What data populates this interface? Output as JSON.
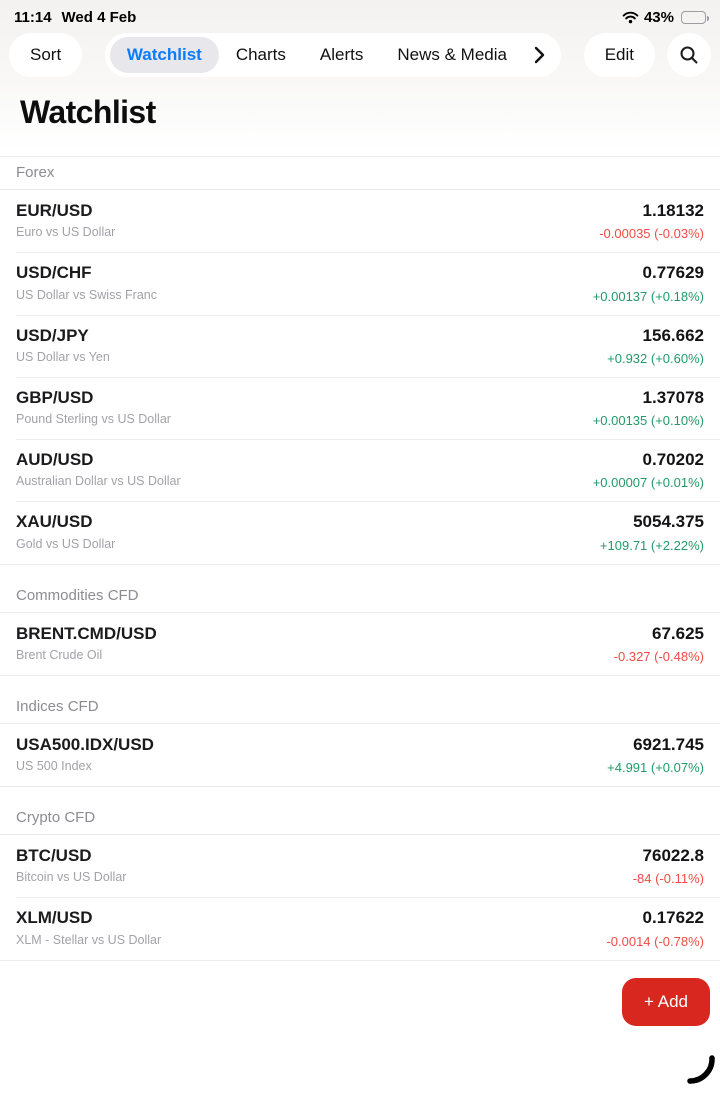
{
  "status_bar": {
    "time": "11:14",
    "date": "Wed 4 Feb",
    "battery_percent": "43%",
    "battery_level": 43
  },
  "nav": {
    "sort_label": "Sort",
    "tabs": [
      {
        "label": "Watchlist",
        "active": true
      },
      {
        "label": "Charts",
        "active": false
      },
      {
        "label": "Alerts",
        "active": false
      },
      {
        "label": "News & Media",
        "active": false
      }
    ],
    "more_icon": "chevron-right-icon",
    "edit_label": "Edit",
    "search_icon": "search-icon"
  },
  "title": "Watchlist",
  "sections": [
    {
      "name": "Forex",
      "rows": [
        {
          "symbol": "EUR/USD",
          "description": "Euro vs US Dollar",
          "price": "1.18132",
          "change": "-0.00035 (-0.03%)",
          "direction": "down"
        },
        {
          "symbol": "USD/CHF",
          "description": "US Dollar vs Swiss Franc",
          "price": "0.77629",
          "change": "+0.00137 (+0.18%)",
          "direction": "up"
        },
        {
          "symbol": "USD/JPY",
          "description": "US Dollar vs Yen",
          "price": "156.662",
          "change": "+0.932 (+0.60%)",
          "direction": "up"
        },
        {
          "symbol": "GBP/USD",
          "description": "Pound Sterling vs US Dollar",
          "price": "1.37078",
          "change": "+0.00135 (+0.10%)",
          "direction": "up"
        },
        {
          "symbol": "AUD/USD",
          "description": "Australian Dollar vs US Dollar",
          "price": "0.70202",
          "change": "+0.00007 (+0.01%)",
          "direction": "up"
        },
        {
          "symbol": "XAU/USD",
          "description": "Gold vs US Dollar",
          "price": "5054.375",
          "change": "+109.71 (+2.22%)",
          "direction": "up"
        }
      ]
    },
    {
      "name": "Commodities CFD",
      "rows": [
        {
          "symbol": "BRENT.CMD/USD",
          "description": "Brent Crude Oil",
          "price": "67.625",
          "change": "-0.327 (-0.48%)",
          "direction": "down"
        }
      ]
    },
    {
      "name": "Indices CFD",
      "rows": [
        {
          "symbol": "USA500.IDX/USD",
          "description": "US 500 Index",
          "price": "6921.745",
          "change": "+4.991 (+0.07%)",
          "direction": "up"
        }
      ]
    },
    {
      "name": "Crypto CFD",
      "rows": [
        {
          "symbol": "BTC/USD",
          "description": "Bitcoin vs US Dollar",
          "price": "76022.8",
          "change": "-84 (-0.11%)",
          "direction": "down"
        },
        {
          "symbol": "XLM/USD",
          "description": "XLM - Stellar vs US Dollar",
          "price": "0.17622",
          "change": "-0.0014 (-0.78%)",
          "direction": "down"
        }
      ]
    }
  ],
  "add_button_label": "+ Add",
  "colors": {
    "accent_blue": "#0a7cff",
    "positive_green": "#219a68",
    "negative_red": "#ef4b44",
    "add_button_red": "#d8271f"
  }
}
